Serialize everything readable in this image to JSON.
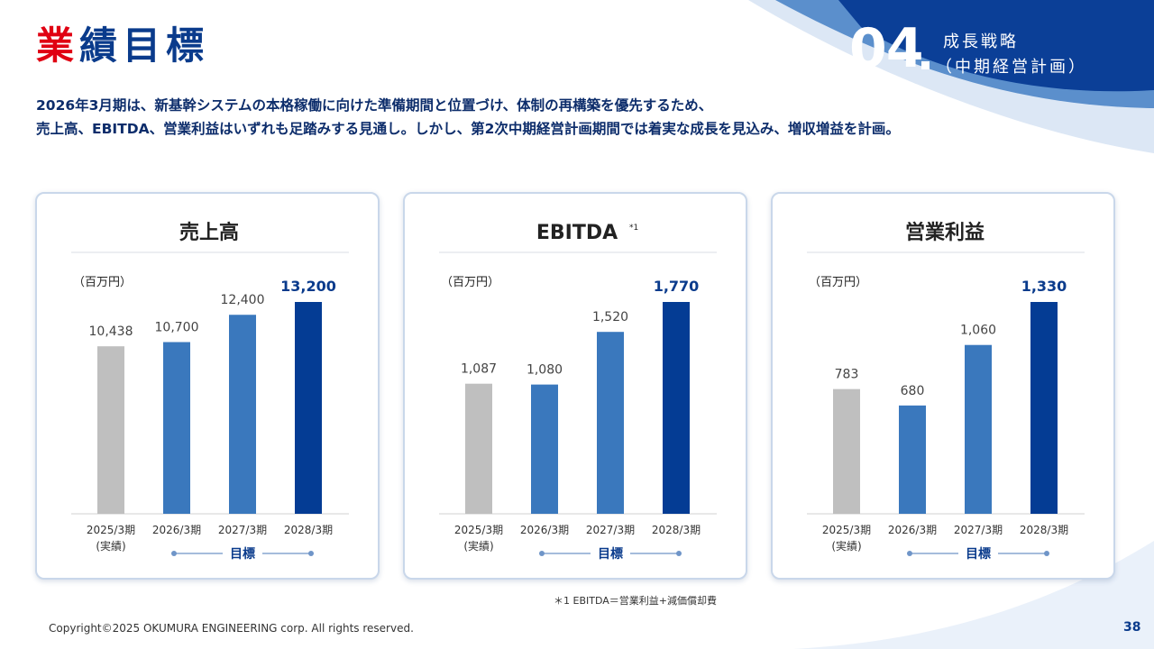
{
  "header": {
    "title_first": "業",
    "title_rest": "績目標",
    "section_number": "04",
    "section_label_line1": "成長戦略",
    "section_label_line2": "（中期経営計画）"
  },
  "subtitle": {
    "line1": "2026年3月期は、新基幹システムの本格稼働に向けた準備期間と位置づけ、体制の再構築を優先するため、",
    "line2": "売上高、EBITDA、営業利益はいずれも足踏みする見通し。しかし、第2次中期経営計画期間では着実な成長を見込み、増収増益を計画。"
  },
  "colors": {
    "brand_red": "#e00012",
    "brand_navy": "#0a3b8c",
    "bar_actual": "#bfbfbf",
    "bar_2026": "#3a78bd",
    "bar_2027": "#3a78bd",
    "bar_2028": "#043c94"
  },
  "chart_data": [
    {
      "type": "bar",
      "title": "売上高",
      "title_note": "",
      "unit": "（百万円）",
      "categories": [
        "2025/3期",
        "2026/3期",
        "2027/3期",
        "2028/3期"
      ],
      "category_notes": [
        "(実績)",
        "",
        "",
        ""
      ],
      "values": [
        10438,
        10700,
        12400,
        13200
      ],
      "value_labels": [
        "10,438",
        "10,700",
        "12,400",
        "13,200"
      ],
      "ylim": [
        0,
        13200
      ],
      "target_label": "目標",
      "legend": "none"
    },
    {
      "type": "bar",
      "title": "EBITDA",
      "title_note": "*1",
      "unit": "（百万円）",
      "categories": [
        "2025/3期",
        "2026/3期",
        "2027/3期",
        "2028/3期"
      ],
      "category_notes": [
        "(実績)",
        "",
        "",
        ""
      ],
      "values": [
        1087,
        1080,
        1520,
        1770
      ],
      "value_labels": [
        "1,087",
        "1,080",
        "1,520",
        "1,770"
      ],
      "ylim": [
        0,
        1770
      ],
      "target_label": "目標",
      "legend": "none"
    },
    {
      "type": "bar",
      "title": "営業利益",
      "title_note": "",
      "unit": "（百万円）",
      "categories": [
        "2025/3期",
        "2026/3期",
        "2027/3期",
        "2028/3期"
      ],
      "category_notes": [
        "(実績)",
        "",
        "",
        ""
      ],
      "values": [
        783,
        680,
        1060,
        1330
      ],
      "value_labels": [
        "783",
        "680",
        "1,060",
        "1,330"
      ],
      "ylim": [
        0,
        1330
      ],
      "target_label": "目標",
      "legend": "none"
    }
  ],
  "footnote": "＊1 EBITDA＝営業利益+減価償却費",
  "footer": {
    "copyright": "Copyright©2025 OKUMURA ENGINEERING corp. All rights reserved.",
    "page_number": "38"
  }
}
